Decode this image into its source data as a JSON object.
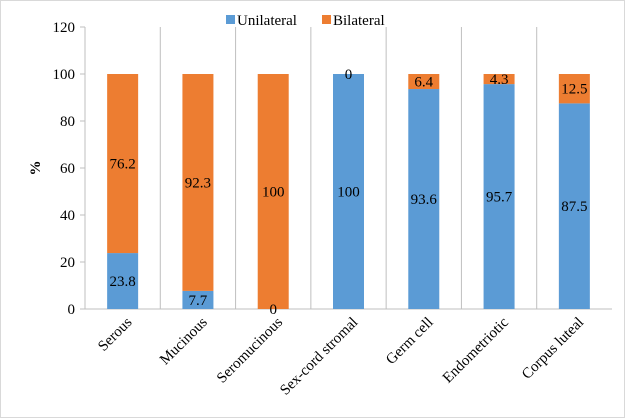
{
  "chart_data": {
    "type": "bar",
    "stacked": true,
    "categories": [
      "Serous",
      "Mucinous",
      "Seromucinous",
      "Sex-cord stromal",
      "Germ cell",
      "Endometriotic",
      "Corpus luteal"
    ],
    "series": [
      {
        "name": "Unilateral",
        "color": "#5B9BD5",
        "values": [
          23.8,
          7.7,
          0,
          100,
          93.6,
          95.7,
          87.5
        ]
      },
      {
        "name": "Bilateral",
        "color": "#ED7D31",
        "values": [
          76.2,
          92.3,
          100,
          0,
          6.4,
          4.3,
          12.5
        ]
      }
    ],
    "title": "",
    "xlabel": "",
    "ylabel": "%",
    "ylim": [
      0,
      120
    ],
    "yticks": [
      0,
      20,
      40,
      60,
      80,
      100,
      120
    ],
    "ytick_labels": [
      "0",
      "20",
      "40",
      "60",
      "80",
      "100",
      "120"
    ],
    "data_labels": [
      [
        "23.8",
        "7.7",
        "0",
        "100",
        "93.6",
        "95.7",
        "87.5"
      ],
      [
        "76.2",
        "92.3",
        "100",
        "0",
        "6.4",
        "4.3",
        "12.5"
      ]
    ],
    "legend_position": "top",
    "category_separators": true,
    "grid": false
  }
}
